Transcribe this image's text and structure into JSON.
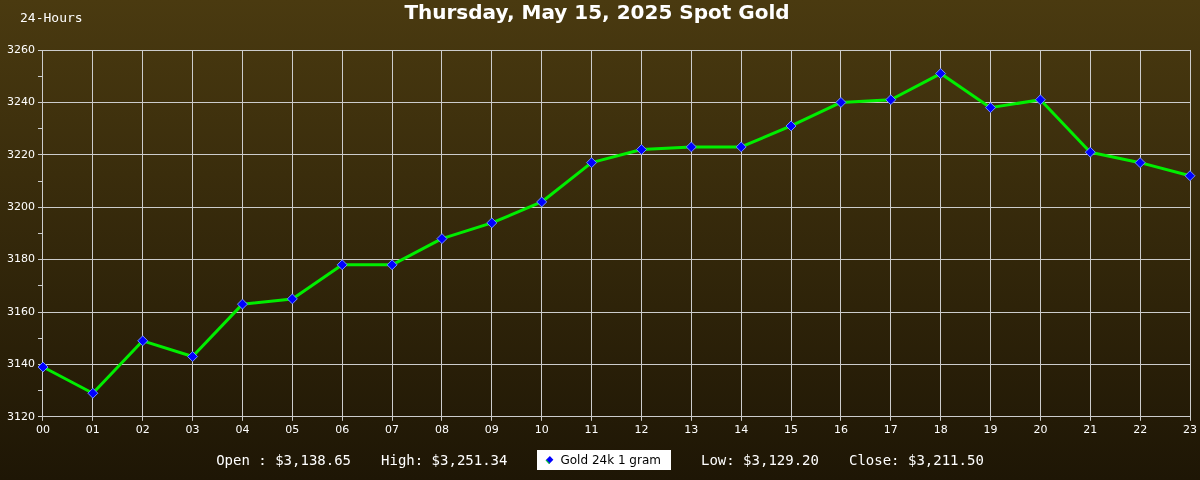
{
  "chart_data": {
    "type": "line",
    "title": "Thursday, May 15, 2025 Spot Gold",
    "categories": [
      "00",
      "01",
      "02",
      "03",
      "04",
      "05",
      "06",
      "07",
      "08",
      "09",
      "10",
      "11",
      "12",
      "13",
      "14",
      "15",
      "16",
      "17",
      "18",
      "19",
      "20",
      "21",
      "22",
      "23"
    ],
    "series": [
      {
        "name": "Gold 24k 1 gram",
        "color": "#00ee00",
        "values": [
          3139,
          3129,
          3149,
          3143,
          3163,
          3165,
          3178,
          3178,
          3188,
          3194,
          3202,
          3217,
          3222,
          3223,
          3223,
          3231,
          3240,
          3241,
          3251,
          3238,
          3241,
          3221,
          3217,
          3212
        ]
      }
    ],
    "ylim": [
      3120,
      3260
    ],
    "yticks": [
      3120,
      {
        "value": 3130,
        "label": null
      },
      3140,
      {
        "value": 3150,
        "label": null
      },
      3160,
      {
        "value": 3170,
        "label": null
      },
      3180,
      {
        "value": 3190,
        "label": null
      },
      3200,
      {
        "value": 3210,
        "label": null
      },
      3220,
      {
        "value": 3230,
        "label": null
      },
      3240,
      {
        "value": 3250,
        "label": null
      },
      3260
    ],
    "grid": true,
    "legend": "bottom",
    "marker": "diamond",
    "line_style": "solid",
    "annotations": [
      "24-Hours",
      "Open : $3,138.65",
      "High: $3,251.34",
      "Low: $3,129.20",
      "Close: $3,211.50"
    ]
  }
}
